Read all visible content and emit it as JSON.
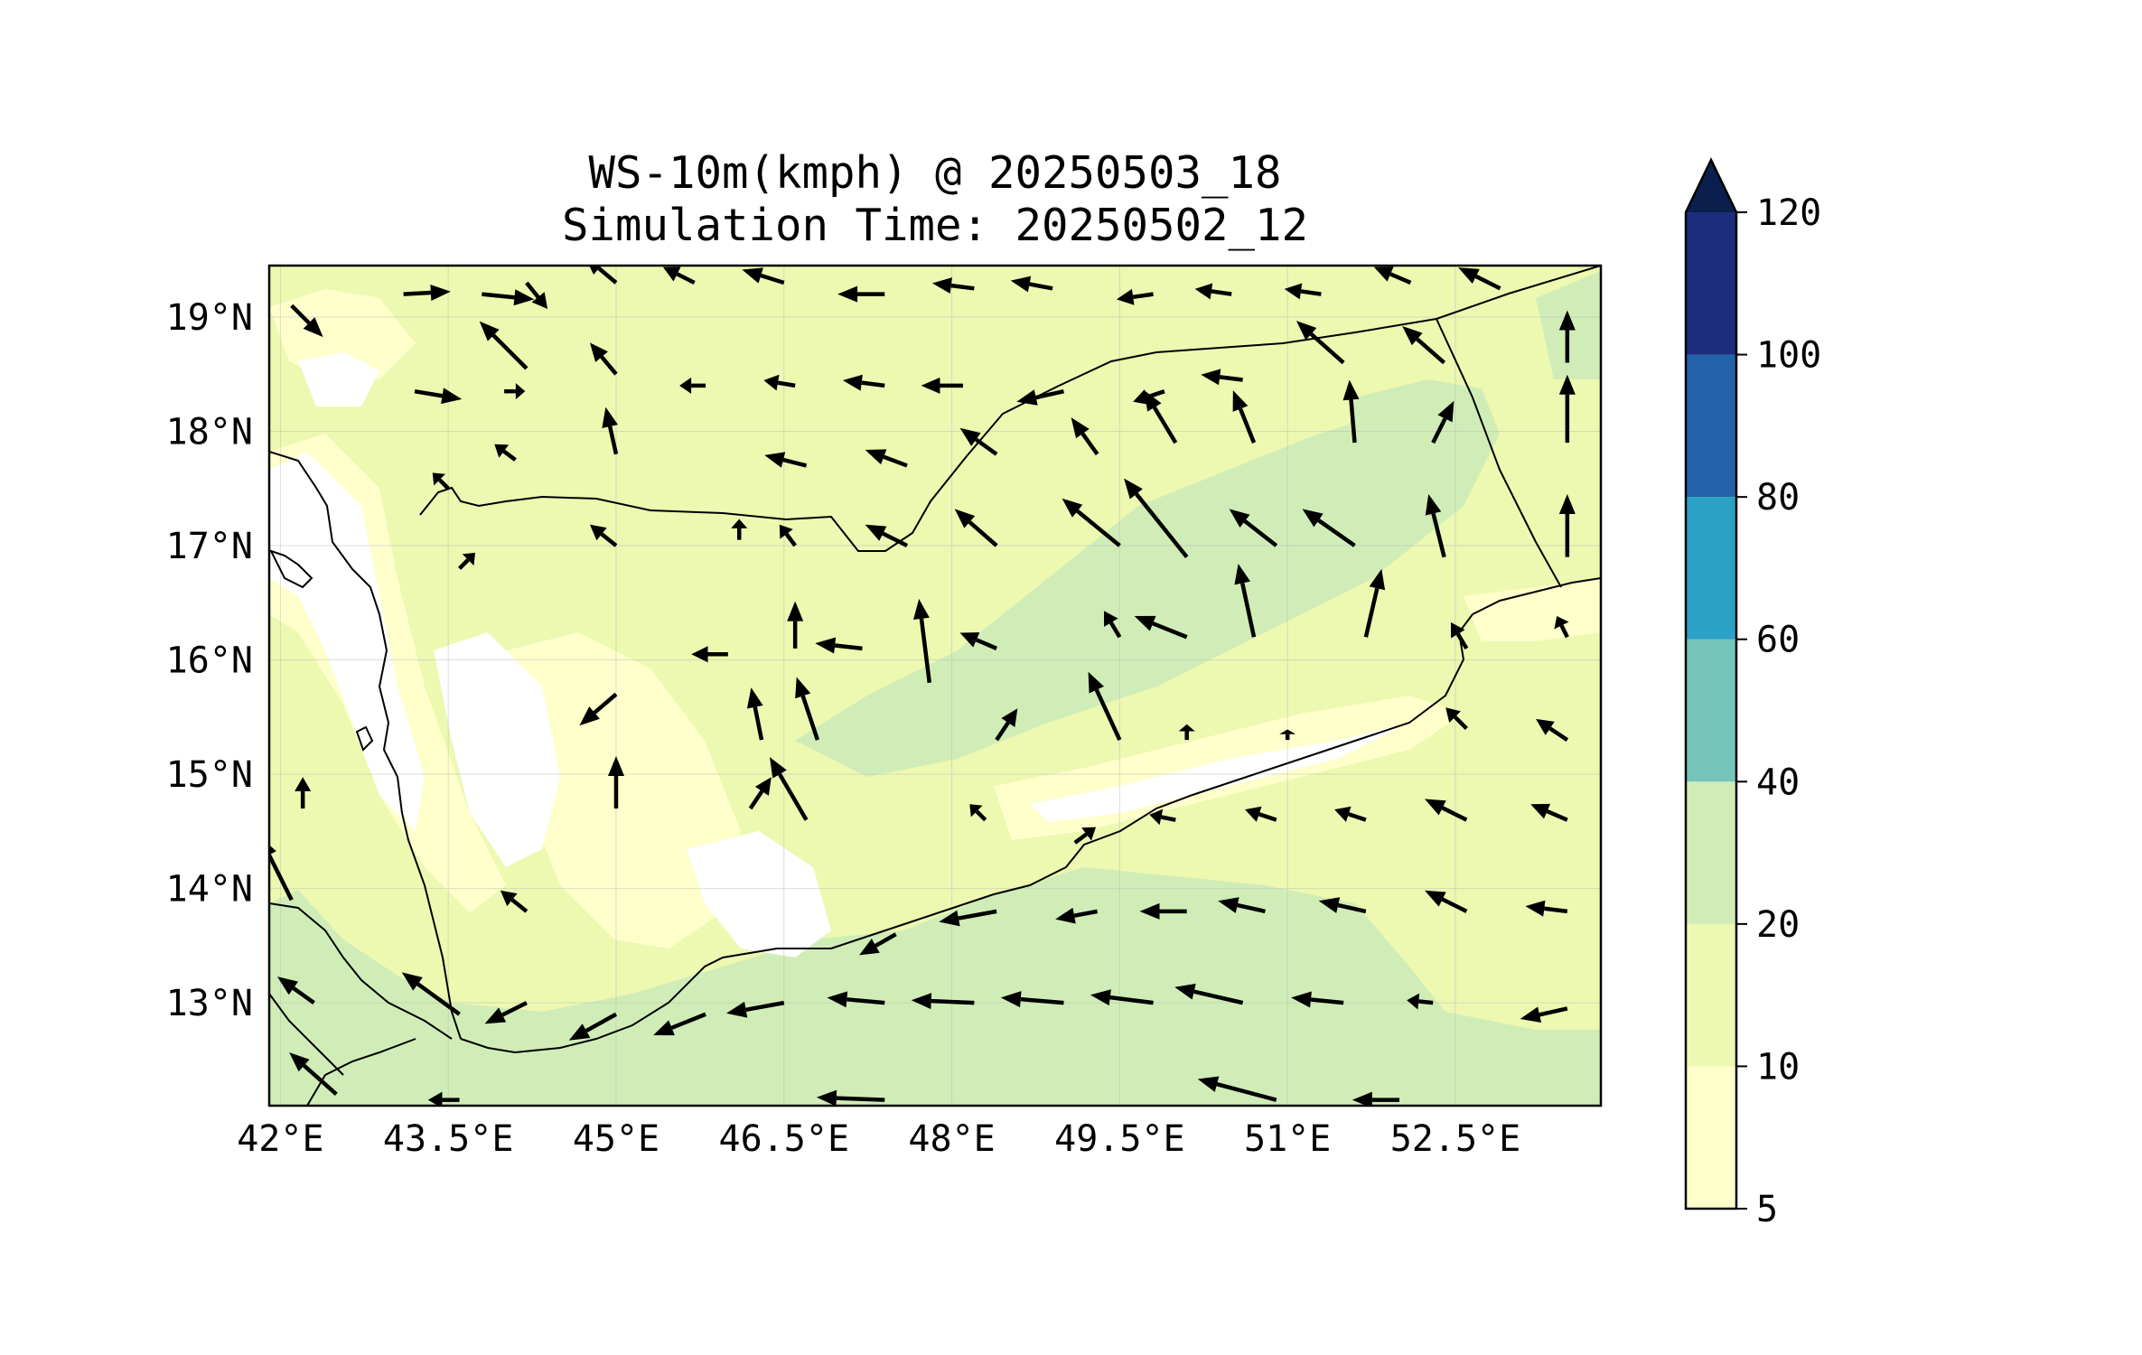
{
  "title": {
    "line1": "WS-10m(kmph) @ 20250503_18",
    "line2": "Simulation Time: 20250502_12"
  },
  "axes": {
    "lon_ticks": [
      "42°E",
      "43.5°E",
      "45°E",
      "46.5°E",
      "48°E",
      "49.5°E",
      "51°E",
      "52.5°E"
    ],
    "lat_ticks": [
      "19°N",
      "18°N",
      "17°N",
      "16°N",
      "15°N",
      "14°N",
      "13°N"
    ]
  },
  "colorbar": {
    "ticks": [
      "5",
      "10",
      "20",
      "40",
      "60",
      "80",
      "100",
      "120"
    ],
    "levels": [
      5,
      10,
      20,
      40,
      60,
      80,
      100,
      120
    ],
    "colors": [
      "#ffffcc",
      "#edf8b1",
      "#d0edb7",
      "#74c4b9",
      "#2aa1c5",
      "#2362a9",
      "#1d2d7d"
    ],
    "extend_color": "#0b1f4f",
    "extend": "max"
  },
  "map": {
    "lon_range": [
      41.9,
      53.8
    ],
    "lat_range": [
      12.1,
      19.45
    ],
    "background_color": "#edf8b1",
    "gridlines": true,
    "coastlines": true,
    "region": "Yemen / southern Arabian Peninsula"
  },
  "chart_data": {
    "type": "heatmap",
    "title": "WS-10m(kmph) @ 20250503_18",
    "subtitle": "Simulation Time: 20250502_12",
    "xlabel": "",
    "ylabel": "",
    "xlim": [
      41.9,
      53.8
    ],
    "ylim": [
      12.1,
      19.45
    ],
    "colorbar_levels": [
      5,
      10,
      20,
      40,
      60,
      80,
      100,
      120
    ],
    "wind_vectors": [
      {
        "lon": 42.1,
        "lat": 19.1,
        "u": 0.6,
        "v": -0.6
      },
      {
        "lon": 43.1,
        "lat": 19.2,
        "u": 0.9,
        "v": 0.05
      },
      {
        "lon": 43.8,
        "lat": 19.2,
        "u": 1.0,
        "v": -0.1
      },
      {
        "lon": 44.2,
        "lat": 19.3,
        "u": 0.4,
        "v": -0.5
      },
      {
        "lon": 45.0,
        "lat": 19.3,
        "u": -0.6,
        "v": 0.5
      },
      {
        "lon": 45.7,
        "lat": 19.3,
        "u": -0.6,
        "v": 0.3
      },
      {
        "lon": 46.5,
        "lat": 19.3,
        "u": -0.8,
        "v": 0.25
      },
      {
        "lon": 47.4,
        "lat": 19.2,
        "u": -0.9,
        "v": 0.0
      },
      {
        "lon": 48.2,
        "lat": 19.25,
        "u": -0.8,
        "v": 0.1
      },
      {
        "lon": 48.9,
        "lat": 19.25,
        "u": -0.8,
        "v": 0.15
      },
      {
        "lon": 49.8,
        "lat": 19.2,
        "u": -0.7,
        "v": -0.1
      },
      {
        "lon": 50.5,
        "lat": 19.2,
        "u": -0.7,
        "v": 0.1
      },
      {
        "lon": 51.3,
        "lat": 19.2,
        "u": -0.7,
        "v": 0.1
      },
      {
        "lon": 52.1,
        "lat": 19.3,
        "u": -0.7,
        "v": 0.3
      },
      {
        "lon": 52.9,
        "lat": 19.25,
        "u": -0.8,
        "v": 0.4
      },
      {
        "lon": 43.2,
        "lat": 18.35,
        "u": 0.9,
        "v": -0.15
      },
      {
        "lon": 44.0,
        "lat": 18.35,
        "u": 0.4,
        "v": 0.0
      },
      {
        "lon": 44.2,
        "lat": 18.55,
        "u": -0.9,
        "v": 0.9
      },
      {
        "lon": 45.0,
        "lat": 18.5,
        "u": -0.5,
        "v": 0.6
      },
      {
        "lon": 45.8,
        "lat": 18.4,
        "u": -0.5,
        "v": 0.0
      },
      {
        "lon": 46.6,
        "lat": 18.4,
        "u": -0.6,
        "v": 0.1
      },
      {
        "lon": 47.4,
        "lat": 18.4,
        "u": -0.8,
        "v": 0.1
      },
      {
        "lon": 48.1,
        "lat": 18.4,
        "u": -0.8,
        "v": 0.0
      },
      {
        "lon": 49.0,
        "lat": 18.35,
        "u": -0.9,
        "v": -0.2
      },
      {
        "lon": 49.9,
        "lat": 18.35,
        "u": -0.6,
        "v": -0.2
      },
      {
        "lon": 50.6,
        "lat": 18.45,
        "u": -0.8,
        "v": 0.1
      },
      {
        "lon": 51.5,
        "lat": 18.6,
        "u": -0.9,
        "v": 0.8
      },
      {
        "lon": 52.4,
        "lat": 18.6,
        "u": -0.8,
        "v": 0.7
      },
      {
        "lon": 53.5,
        "lat": 18.6,
        "u": 0.0,
        "v": 1.0
      },
      {
        "lon": 44.1,
        "lat": 17.75,
        "u": -0.4,
        "v": 0.3
      },
      {
        "lon": 45.0,
        "lat": 17.8,
        "u": -0.2,
        "v": 0.9
      },
      {
        "lon": 46.7,
        "lat": 17.7,
        "u": -0.8,
        "v": 0.2
      },
      {
        "lon": 47.6,
        "lat": 17.7,
        "u": -0.8,
        "v": 0.3
      },
      {
        "lon": 48.4,
        "lat": 17.8,
        "u": -0.7,
        "v": 0.5
      },
      {
        "lon": 49.3,
        "lat": 17.8,
        "u": -0.5,
        "v": 0.7
      },
      {
        "lon": 50.0,
        "lat": 17.9,
        "u": -0.6,
        "v": 1.0
      },
      {
        "lon": 50.7,
        "lat": 17.9,
        "u": -0.4,
        "v": 1.0
      },
      {
        "lon": 51.6,
        "lat": 17.9,
        "u": -0.1,
        "v": 1.2
      },
      {
        "lon": 52.3,
        "lat": 17.9,
        "u": 0.4,
        "v": 0.8
      },
      {
        "lon": 53.5,
        "lat": 17.9,
        "u": 0.0,
        "v": 1.3
      },
      {
        "lon": 43.5,
        "lat": 17.5,
        "u": -0.3,
        "v": 0.3
      },
      {
        "lon": 45.0,
        "lat": 17.0,
        "u": -0.5,
        "v": 0.4
      },
      {
        "lon": 46.1,
        "lat": 17.05,
        "u": 0.0,
        "v": 0.4
      },
      {
        "lon": 46.6,
        "lat": 17.0,
        "u": -0.3,
        "v": 0.4
      },
      {
        "lon": 47.6,
        "lat": 17.0,
        "u": -0.8,
        "v": 0.4
      },
      {
        "lon": 48.4,
        "lat": 17.0,
        "u": -0.8,
        "v": 0.7
      },
      {
        "lon": 49.5,
        "lat": 17.0,
        "u": -1.1,
        "v": 0.9
      },
      {
        "lon": 50.1,
        "lat": 16.9,
        "u": -1.2,
        "v": 1.5
      },
      {
        "lon": 50.9,
        "lat": 17.0,
        "u": -0.9,
        "v": 0.7
      },
      {
        "lon": 51.6,
        "lat": 17.0,
        "u": -1.0,
        "v": 0.7
      },
      {
        "lon": 52.4,
        "lat": 16.9,
        "u": -0.3,
        "v": 1.2
      },
      {
        "lon": 53.5,
        "lat": 16.9,
        "u": 0.0,
        "v": 1.2
      },
      {
        "lon": 43.6,
        "lat": 16.8,
        "u": 0.3,
        "v": 0.3
      },
      {
        "lon": 46.6,
        "lat": 16.1,
        "u": 0.0,
        "v": 0.9
      },
      {
        "lon": 47.2,
        "lat": 16.1,
        "u": -0.9,
        "v": 0.1
      },
      {
        "lon": 47.8,
        "lat": 15.8,
        "u": -0.2,
        "v": 1.6
      },
      {
        "lon": 48.4,
        "lat": 16.1,
        "u": -0.7,
        "v": 0.3
      },
      {
        "lon": 49.5,
        "lat": 16.2,
        "u": -0.3,
        "v": 0.5
      },
      {
        "lon": 50.1,
        "lat": 16.2,
        "u": -1.0,
        "v": 0.4
      },
      {
        "lon": 50.7,
        "lat": 16.2,
        "u": -0.3,
        "v": 1.4
      },
      {
        "lon": 51.7,
        "lat": 16.2,
        "u": 0.3,
        "v": 1.3
      },
      {
        "lon": 52.6,
        "lat": 16.1,
        "u": -0.3,
        "v": 0.5
      },
      {
        "lon": 53.5,
        "lat": 16.2,
        "u": -0.2,
        "v": 0.4
      },
      {
        "lon": 45.0,
        "lat": 15.7,
        "u": -0.7,
        "v": -0.6
      },
      {
        "lon": 46.0,
        "lat": 16.05,
        "u": -0.7,
        "v": 0.0
      },
      {
        "lon": 46.3,
        "lat": 15.3,
        "u": -0.2,
        "v": 1.0
      },
      {
        "lon": 46.8,
        "lat": 15.3,
        "u": -0.4,
        "v": 1.2
      },
      {
        "lon": 48.4,
        "lat": 15.3,
        "u": 0.4,
        "v": 0.6
      },
      {
        "lon": 49.5,
        "lat": 15.3,
        "u": -0.6,
        "v": 1.3
      },
      {
        "lon": 50.1,
        "lat": 15.3,
        "u": 0.0,
        "v": 0.3
      },
      {
        "lon": 51.0,
        "lat": 15.3,
        "u": 0.0,
        "v": 0.2
      },
      {
        "lon": 52.6,
        "lat": 15.4,
        "u": -0.4,
        "v": 0.4
      },
      {
        "lon": 53.5,
        "lat": 15.3,
        "u": -0.6,
        "v": 0.4
      },
      {
        "lon": 42.2,
        "lat": 14.7,
        "u": 0.0,
        "v": 0.6
      },
      {
        "lon": 45.0,
        "lat": 14.7,
        "u": 0.0,
        "v": 1.0
      },
      {
        "lon": 46.2,
        "lat": 14.7,
        "u": 0.4,
        "v": 0.6
      },
      {
        "lon": 46.7,
        "lat": 14.6,
        "u": -0.7,
        "v": 1.2
      },
      {
        "lon": 48.3,
        "lat": 14.6,
        "u": -0.3,
        "v": 0.3
      },
      {
        "lon": 49.1,
        "lat": 14.4,
        "u": 0.4,
        "v": 0.3
      },
      {
        "lon": 50.0,
        "lat": 14.6,
        "u": -0.5,
        "v": 0.1
      },
      {
        "lon": 50.9,
        "lat": 14.6,
        "u": -0.6,
        "v": 0.2
      },
      {
        "lon": 51.7,
        "lat": 14.6,
        "u": -0.6,
        "v": 0.2
      },
      {
        "lon": 52.6,
        "lat": 14.6,
        "u": -0.8,
        "v": 0.4
      },
      {
        "lon": 53.5,
        "lat": 14.6,
        "u": -0.7,
        "v": 0.3
      },
      {
        "lon": 42.1,
        "lat": 13.9,
        "u": -0.6,
        "v": 1.2
      },
      {
        "lon": 44.2,
        "lat": 13.8,
        "u": -0.5,
        "v": 0.4
      },
      {
        "lon": 47.5,
        "lat": 13.6,
        "u": -0.7,
        "v": -0.4
      },
      {
        "lon": 48.4,
        "lat": 13.8,
        "u": -1.1,
        "v": -0.2
      },
      {
        "lon": 49.3,
        "lat": 13.8,
        "u": -0.8,
        "v": -0.15
      },
      {
        "lon": 50.1,
        "lat": 13.8,
        "u": -0.9,
        "v": 0.0
      },
      {
        "lon": 50.8,
        "lat": 13.8,
        "u": -0.9,
        "v": 0.2
      },
      {
        "lon": 51.7,
        "lat": 13.8,
        "u": -0.9,
        "v": 0.2
      },
      {
        "lon": 52.6,
        "lat": 13.8,
        "u": -0.8,
        "v": 0.4
      },
      {
        "lon": 53.5,
        "lat": 13.8,
        "u": -0.8,
        "v": 0.1
      },
      {
        "lon": 42.3,
        "lat": 13.0,
        "u": -0.7,
        "v": 0.5
      },
      {
        "lon": 43.6,
        "lat": 12.9,
        "u": -1.1,
        "v": 0.8
      },
      {
        "lon": 44.2,
        "lat": 13.0,
        "u": -0.8,
        "v": -0.4
      },
      {
        "lon": 45.0,
        "lat": 12.9,
        "u": -0.9,
        "v": -0.5
      },
      {
        "lon": 45.8,
        "lat": 12.9,
        "u": -1.0,
        "v": -0.4
      },
      {
        "lon": 46.5,
        "lat": 13.0,
        "u": -1.1,
        "v": -0.2
      },
      {
        "lon": 47.4,
        "lat": 13.0,
        "u": -1.1,
        "v": 0.1
      },
      {
        "lon": 48.2,
        "lat": 13.0,
        "u": -1.2,
        "v": 0.05
      },
      {
        "lon": 49.0,
        "lat": 13.0,
        "u": -1.2,
        "v": 0.1
      },
      {
        "lon": 49.8,
        "lat": 13.0,
        "u": -1.2,
        "v": 0.15
      },
      {
        "lon": 50.6,
        "lat": 13.0,
        "u": -1.3,
        "v": 0.3
      },
      {
        "lon": 51.5,
        "lat": 13.0,
        "u": -1.0,
        "v": 0.1
      },
      {
        "lon": 52.3,
        "lat": 13.0,
        "u": -0.5,
        "v": 0.05
      },
      {
        "lon": 53.5,
        "lat": 12.95,
        "u": -0.9,
        "v": -0.2
      },
      {
        "lon": 42.5,
        "lat": 12.2,
        "u": -0.9,
        "v": 0.8
      },
      {
        "lon": 43.6,
        "lat": 12.15,
        "u": -0.6,
        "v": 0.0
      },
      {
        "lon": 47.4,
        "lat": 12.15,
        "u": -1.3,
        "v": 0.05
      },
      {
        "lon": 50.9,
        "lat": 12.15,
        "u": -1.5,
        "v": 0.4
      },
      {
        "lon": 52.0,
        "lat": 12.15,
        "u": -0.9,
        "v": 0.0
      }
    ]
  }
}
